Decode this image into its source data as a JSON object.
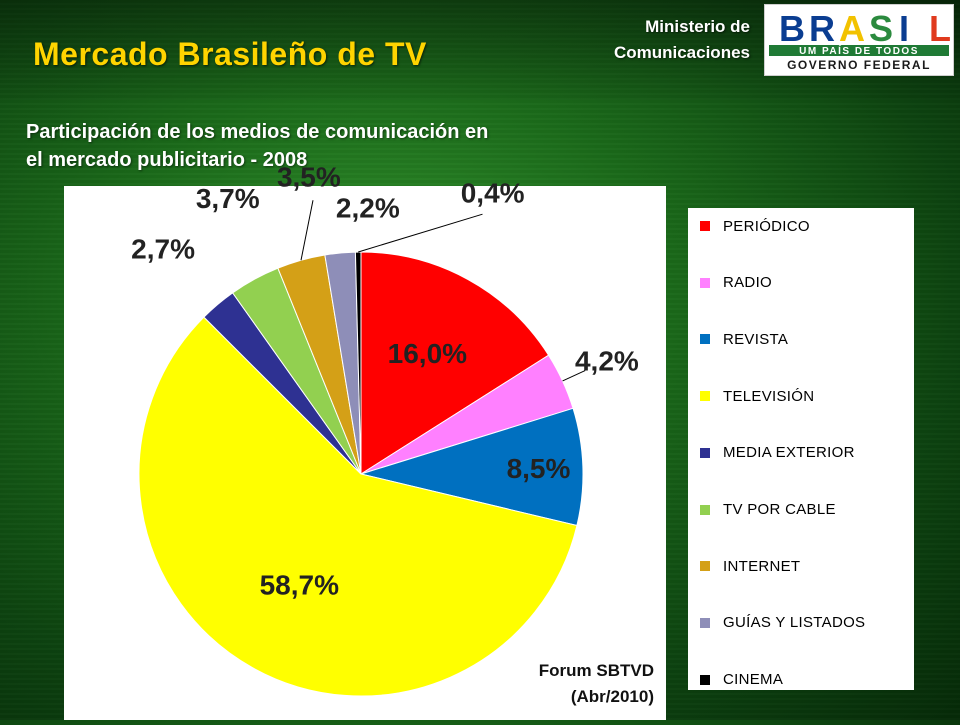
{
  "header": {
    "title": "Mercado Brasileño de TV",
    "ministry_line1": "Ministerio de",
    "ministry_line2": "Comunicaciones"
  },
  "logo": {
    "word": "BRASIL",
    "line2": "UM PAÍS DE TODOS",
    "line3": "GOVERNO FEDERAL",
    "letter_colors": [
      "#0a3d91",
      "#0a3d91",
      "#f2c200",
      "#2b8a3e",
      "#0a3d91",
      "#e03a1e"
    ]
  },
  "subtitle": {
    "line1": "Participación de los medios de comunicación en",
    "line2": "el mercado publicitario - 2008"
  },
  "source": {
    "line1": "Forum SBTVD",
    "line2": "(Abr/2010)"
  },
  "chart_data": {
    "type": "pie",
    "title": "",
    "categories": [
      "PERIÓDICO",
      "RADIO",
      "REVISTA",
      "TELEVISIÓN",
      "MEDIA EXTERIOR",
      "TV POR CABLE",
      "INTERNET",
      "GUÍAS Y LISTADOS",
      "CINEMA"
    ],
    "values": [
      16.0,
      4.2,
      8.5,
      58.7,
      2.7,
      3.7,
      3.5,
      2.2,
      0.4
    ],
    "labels": [
      "16,0%",
      "4,2%",
      "8,5%",
      "58,7%",
      "2,7%",
      "3,7%",
      "3,5%",
      "2,2%",
      "0,4%"
    ],
    "colors": [
      "#ff0000",
      "#ff80ff",
      "#0070c0",
      "#ffff00",
      "#2e3192",
      "#92d050",
      "#d4a017",
      "#8e8eb8",
      "#000000"
    ],
    "legend_position": "right"
  }
}
